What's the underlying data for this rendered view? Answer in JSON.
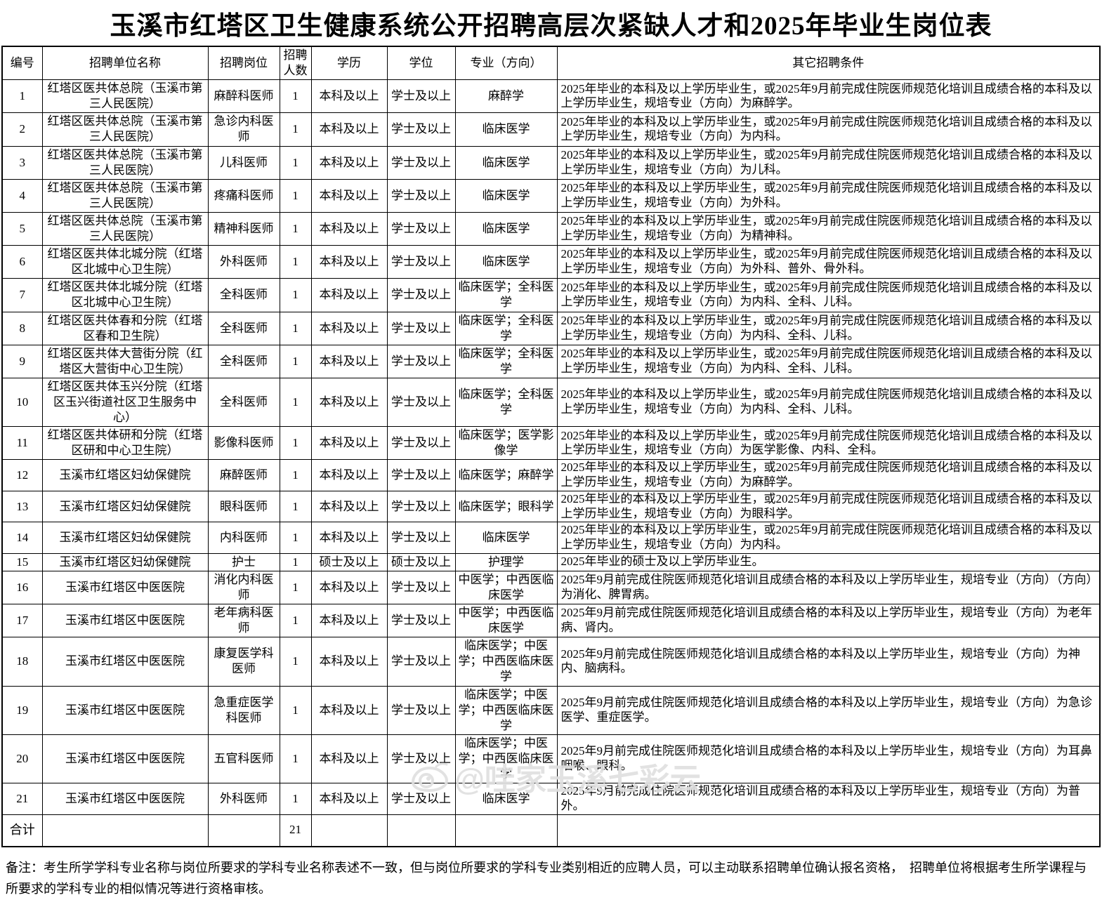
{
  "title": "玉溪市红塔区卫生健康系统公开招聘高层次紧缺人才和2025年毕业生岗位表",
  "table": {
    "headers": [
      "编号",
      "招聘单位名称",
      "招聘岗位",
      "招聘人数",
      "学历",
      "学位",
      "专业（方向）",
      "其它招聘条件"
    ],
    "rows": [
      {
        "no": "1",
        "unit": "红塔区医共体总院（玉溪市第三人民医院）",
        "post": "麻醉科医师",
        "count": "1",
        "edu": "本科及以上",
        "degree": "学士及以上",
        "major": "麻醉学",
        "conditions": "2025年毕业的本科及以上学历毕业生，或2025年9月前完成住院医师规范化培训且成绩合格的本科及以上学历毕业生，规培专业（方向）为麻醉学。"
      },
      {
        "no": "2",
        "unit": "红塔区医共体总院（玉溪市第三人民医院）",
        "post": "急诊内科医师",
        "count": "1",
        "edu": "本科及以上",
        "degree": "学士及以上",
        "major": "临床医学",
        "conditions": "2025年毕业的本科及以上学历毕业生，或2025年9月前完成住院医师规范化培训且成绩合格的本科及以上学历毕业生，规培专业（方向）为内科。"
      },
      {
        "no": "3",
        "unit": "红塔区医共体总院（玉溪市第三人民医院）",
        "post": "儿科医师",
        "count": "1",
        "edu": "本科及以上",
        "degree": "学士及以上",
        "major": "临床医学",
        "conditions": "2025年毕业的本科及以上学历毕业生，或2025年9月前完成住院医师规范化培训且成绩合格的本科及以上学历毕业生，规培专业（方向）为儿科。"
      },
      {
        "no": "4",
        "unit": "红塔区医共体总院（玉溪市第三人民医院）",
        "post": "疼痛科医师",
        "count": "1",
        "edu": "本科及以上",
        "degree": "学士及以上",
        "major": "临床医学",
        "conditions": "2025年毕业的本科及以上学历毕业生，或2025年9月前完成住院医师规范化培训且成绩合格的本科及以上学历毕业生，规培专业（方向）为外科。"
      },
      {
        "no": "5",
        "unit": "红塔区医共体总院（玉溪市第三人民医院）",
        "post": "精神科医师",
        "count": "1",
        "edu": "本科及以上",
        "degree": "学士及以上",
        "major": "临床医学",
        "conditions": "2025年毕业的本科及以上学历毕业生，或2025年9月前完成住院医师规范化培训且成绩合格的本科及以上学历毕业生，规培专业（方向）为精神科。"
      },
      {
        "no": "6",
        "unit": "红塔区医共体北城分院（红塔区北城中心卫生院）",
        "post": "外科医师",
        "count": "1",
        "edu": "本科及以上",
        "degree": "学士及以上",
        "major": "临床医学",
        "conditions": "2025年毕业的本科及以上学历毕业生，或2025年9月前完成住院医师规范化培训且成绩合格的本科及以上学历毕业生，规培专业（方向）为外科、普外、骨外科。"
      },
      {
        "no": "7",
        "unit": "红塔区医共体北城分院（红塔区北城中心卫生院）",
        "post": "全科医师",
        "count": "1",
        "edu": "本科及以上",
        "degree": "学士及以上",
        "major": "临床医学；全科医学",
        "conditions": "2025年毕业的本科及以上学历毕业生，或2025年9月前完成住院医师规范化培训且成绩合格的本科及以上学历毕业生，规培专业（方向）为内科、全科、儿科。"
      },
      {
        "no": "8",
        "unit": "红塔区医共体春和分院（红塔区春和卫生院）",
        "post": "全科医师",
        "count": "1",
        "edu": "本科及以上",
        "degree": "学士及以上",
        "major": "临床医学；全科医学",
        "conditions": "2025年毕业的本科及以上学历毕业生，或2025年9月前完成住院医师规范化培训且成绩合格的本科及以上学历毕业生，规培专业（方向）为内科、全科、儿科。"
      },
      {
        "no": "9",
        "unit": "红塔区医共体大营街分院（红塔区大营街中心卫生院）",
        "post": "全科医师",
        "count": "1",
        "edu": "本科及以上",
        "degree": "学士及以上",
        "major": "临床医学；全科医学",
        "conditions": "2025年毕业的本科及以上学历毕业生，或2025年9月前完成住院医师规范化培训且成绩合格的本科及以上学历毕业生，规培专业（方向）为内科、全科、儿科。"
      },
      {
        "no": "10",
        "unit": "红塔区医共体玉兴分院（红塔区玉兴街道社区卫生服务中心）",
        "post": "全科医师",
        "count": "1",
        "edu": "本科及以上",
        "degree": "学士及以上",
        "major": "临床医学；全科医学",
        "conditions": "2025年毕业的本科及以上学历毕业生，或2025年9月前完成住院医师规范化培训且成绩合格的本科及以上学历毕业生，规培专业（方向）为内科、全科、儿科。"
      },
      {
        "no": "11",
        "unit": "红塔区医共体研和分院（红塔区研和中心卫生院）",
        "post": "影像科医师",
        "count": "1",
        "edu": "本科及以上",
        "degree": "学士及以上",
        "major": "临床医学；医学影像学",
        "conditions": "2025年毕业的本科及以上学历毕业生，或2025年9月前完成住院医师规范化培训且成绩合格的本科及以上学历毕业生，规培专业（方向）为医学影像、内科、全科。"
      },
      {
        "no": "12",
        "unit": "玉溪市红塔区妇幼保健院",
        "post": "麻醉医师",
        "count": "1",
        "edu": "本科及以上",
        "degree": "学士及以上",
        "major": "临床医学；麻醉学",
        "conditions": "2025年毕业的本科及以上学历毕业生，或2025年9月前完成住院医师规范化培训且成绩合格的本科及以上学历毕业生，规培专业（方向）为麻醉学。"
      },
      {
        "no": "13",
        "unit": "玉溪市红塔区妇幼保健院",
        "post": "眼科医师",
        "count": "1",
        "edu": "本科及以上",
        "degree": "学士及以上",
        "major": "临床医学；眼科学",
        "conditions": "2025年毕业的本科及以上学历毕业生，或2025年9月前完成住院医师规范化培训且成绩合格的本科及以上学历毕业生，规培专业（方向）为眼科学。"
      },
      {
        "no": "14",
        "unit": "玉溪市红塔区妇幼保健院",
        "post": "内科医师",
        "count": "1",
        "edu": "本科及以上",
        "degree": "学士及以上",
        "major": "临床医学",
        "conditions": "2025年毕业的本科及以上学历毕业生，或2025年9月前完成住院医师规范化培训且成绩合格的本科及以上学历毕业生，规培专业（方向）为内科。"
      },
      {
        "no": "15",
        "unit": "玉溪市红塔区妇幼保健院",
        "post": "护士",
        "count": "1",
        "edu": "硕士及以上",
        "degree": "硕士及以上",
        "major": "护理学",
        "conditions": "2025年毕业的硕士及以上学历毕业生。"
      },
      {
        "no": "16",
        "unit": "玉溪市红塔区中医医院",
        "post": "消化内科医师",
        "count": "1",
        "edu": "本科及以上",
        "degree": "学士及以上",
        "major": "中医学；中西医临床医学",
        "conditions": "2025年9月前完成住院医师规范化培训且成绩合格的本科及以上学历毕业生，规培专业（方向）（方向）为消化、脾胃病。"
      },
      {
        "no": "17",
        "unit": "玉溪市红塔区中医医院",
        "post": "老年病科医师",
        "count": "1",
        "edu": "本科及以上",
        "degree": "学士及以上",
        "major": "中医学；中西医临床医学",
        "conditions": "2025年9月前完成住院医师规范化培训且成绩合格的本科及以上学历毕业生，规培专业（方向）为老年病、肾内。"
      },
      {
        "no": "18",
        "unit": "玉溪市红塔区中医医院",
        "post": "康复医学科医师",
        "count": "1",
        "edu": "本科及以上",
        "degree": "学士及以上",
        "major": "临床医学；中医学；中西医临床医学",
        "conditions": "2025年9月前完成住院医师规范化培训且成绩合格的本科及以上学历毕业生，规培专业（方向）为神内、脑病科。"
      },
      {
        "no": "19",
        "unit": "玉溪市红塔区中医医院",
        "post": "急重症医学科医师",
        "count": "1",
        "edu": "本科及以上",
        "degree": "学士及以上",
        "major": "临床医学；中医学；中西医临床医学",
        "conditions": "2025年9月前完成住院医师规范化培训且成绩合格的本科及以上学历毕业生，规培专业（方向）为急诊医学、重症医学。"
      },
      {
        "no": "20",
        "unit": "玉溪市红塔区中医医院",
        "post": "五官科医师",
        "count": "1",
        "edu": "本科及以上",
        "degree": "学士及以上",
        "major": "临床医学；中医学；中西医临床医学",
        "conditions": "2025年9月前完成住院医师规范化培训且成绩合格的本科及以上学历毕业生，规培专业（方向）为耳鼻咽喉、眼科。"
      },
      {
        "no": "21",
        "unit": "玉溪市红塔区中医医院",
        "post": "外科医师",
        "count": "1",
        "edu": "本科及以上",
        "degree": "学士及以上",
        "major": "临床医学",
        "conditions": "2025年9月前完成住院医师规范化培训且成绩合格的本科及以上学历毕业生，规培专业（方向）为普外。"
      }
    ],
    "total": {
      "label": "合计",
      "count": "21"
    }
  },
  "footer_note": "备注：考生所学学科专业名称与岗位所要求的学科专业名称表述不一致，但与岗位所要求的学科专业类别相近的应聘人员，可以主动联系招聘单位确认报名资格，　招聘单位将根据考生所学课程与所要求的学科专业的相似情况等进行资格审核。",
  "watermark": {
    "text": "@哇家玉溪七彩云",
    "icon": "weibo-eye-icon",
    "color": "#e0e0e0"
  }
}
